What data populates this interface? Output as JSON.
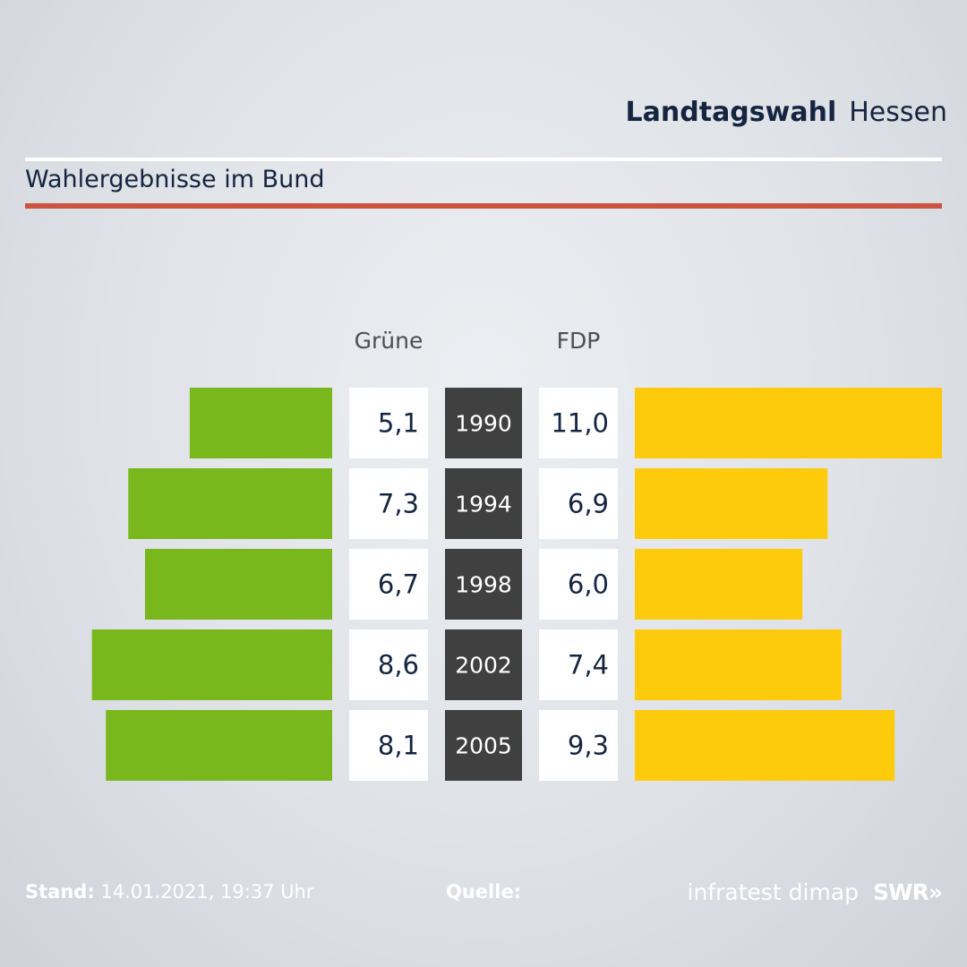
{
  "header": {
    "title_bold": "Landtagswahl",
    "title_light": "Hessen"
  },
  "subtitle": "Wahlergebnisse im Bund",
  "colors": {
    "gruene": "#79b81d",
    "fdp": "#fecb0c",
    "year_box": "#404040",
    "value_box": "#ffffff",
    "red_rule": "#cc5340"
  },
  "chart_data": {
    "type": "bar",
    "categories": [
      "1990",
      "1994",
      "1998",
      "2002",
      "2005"
    ],
    "series": [
      {
        "name": "Grüne",
        "values": [
          5.1,
          7.3,
          6.7,
          8.6,
          8.1
        ],
        "labels": [
          "5,1",
          "7,3",
          "6,7",
          "8,6",
          "8,1"
        ]
      },
      {
        "name": "FDP",
        "values": [
          11.0,
          6.9,
          6.0,
          7.4,
          9.3
        ],
        "labels": [
          "11,0",
          "6,9",
          "6,0",
          "7,4",
          "9,3"
        ]
      }
    ]
  },
  "footer": {
    "stand_label": "Stand:",
    "stand_value": "14.01.2021, 19:37 Uhr",
    "quelle_label": "Quelle:",
    "source": "infratest dimap",
    "brand": "SWR»"
  }
}
